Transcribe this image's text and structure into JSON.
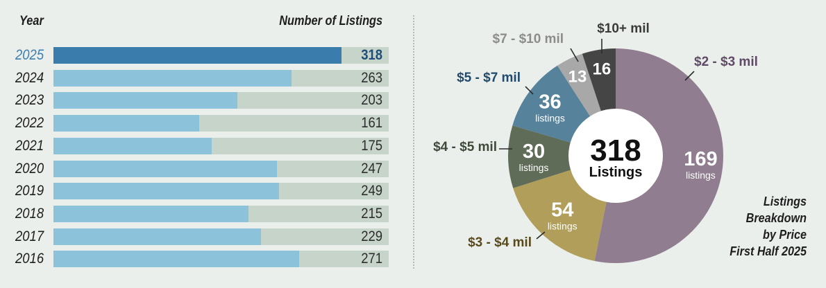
{
  "headers": {
    "year": "Year",
    "count": "Number of Listings"
  },
  "chart_data": [
    {
      "type": "bar",
      "orientation": "horizontal",
      "xlabel": "Number of Listings",
      "ylabel": "Year",
      "xlim": [
        0,
        370
      ],
      "highlight": "2025",
      "categories": [
        "2025",
        "2024",
        "2023",
        "2022",
        "2021",
        "2020",
        "2019",
        "2018",
        "2017",
        "2016"
      ],
      "values": [
        318,
        263,
        203,
        161,
        175,
        247,
        249,
        215,
        229,
        271
      ]
    },
    {
      "type": "pie",
      "style": "donut",
      "title": "Listings Breakdown by Price First Half 2025",
      "center_value": "318",
      "center_label": "Listings",
      "unit_label": "listings",
      "slices": [
        {
          "label": "$2 - $3 mil",
          "value": 169,
          "color": "#907d8f",
          "label_color": "#5e4a66"
        },
        {
          "label": "$3 - $4 mil",
          "value": 54,
          "color": "#b09e5a",
          "label_color": "#5a4a1a"
        },
        {
          "label": "$4 - $5 mil",
          "value": 30,
          "color": "#5f6c58",
          "label_color": "#3d4a3a"
        },
        {
          "label": "$5 - $7 mil",
          "value": 36,
          "color": "#57829c",
          "label_color": "#1f4a6e"
        },
        {
          "label": "$7 - $10 mil",
          "value": 13,
          "color": "#a8a8a8",
          "label_color": "#8c8c8c"
        },
        {
          "label": "$10+ mil",
          "value": 16,
          "color": "#454545",
          "label_color": "#3a3a3a"
        }
      ]
    }
  ],
  "caption": [
    "Listings",
    "Breakdown",
    "by Price",
    "First Half 2025"
  ]
}
